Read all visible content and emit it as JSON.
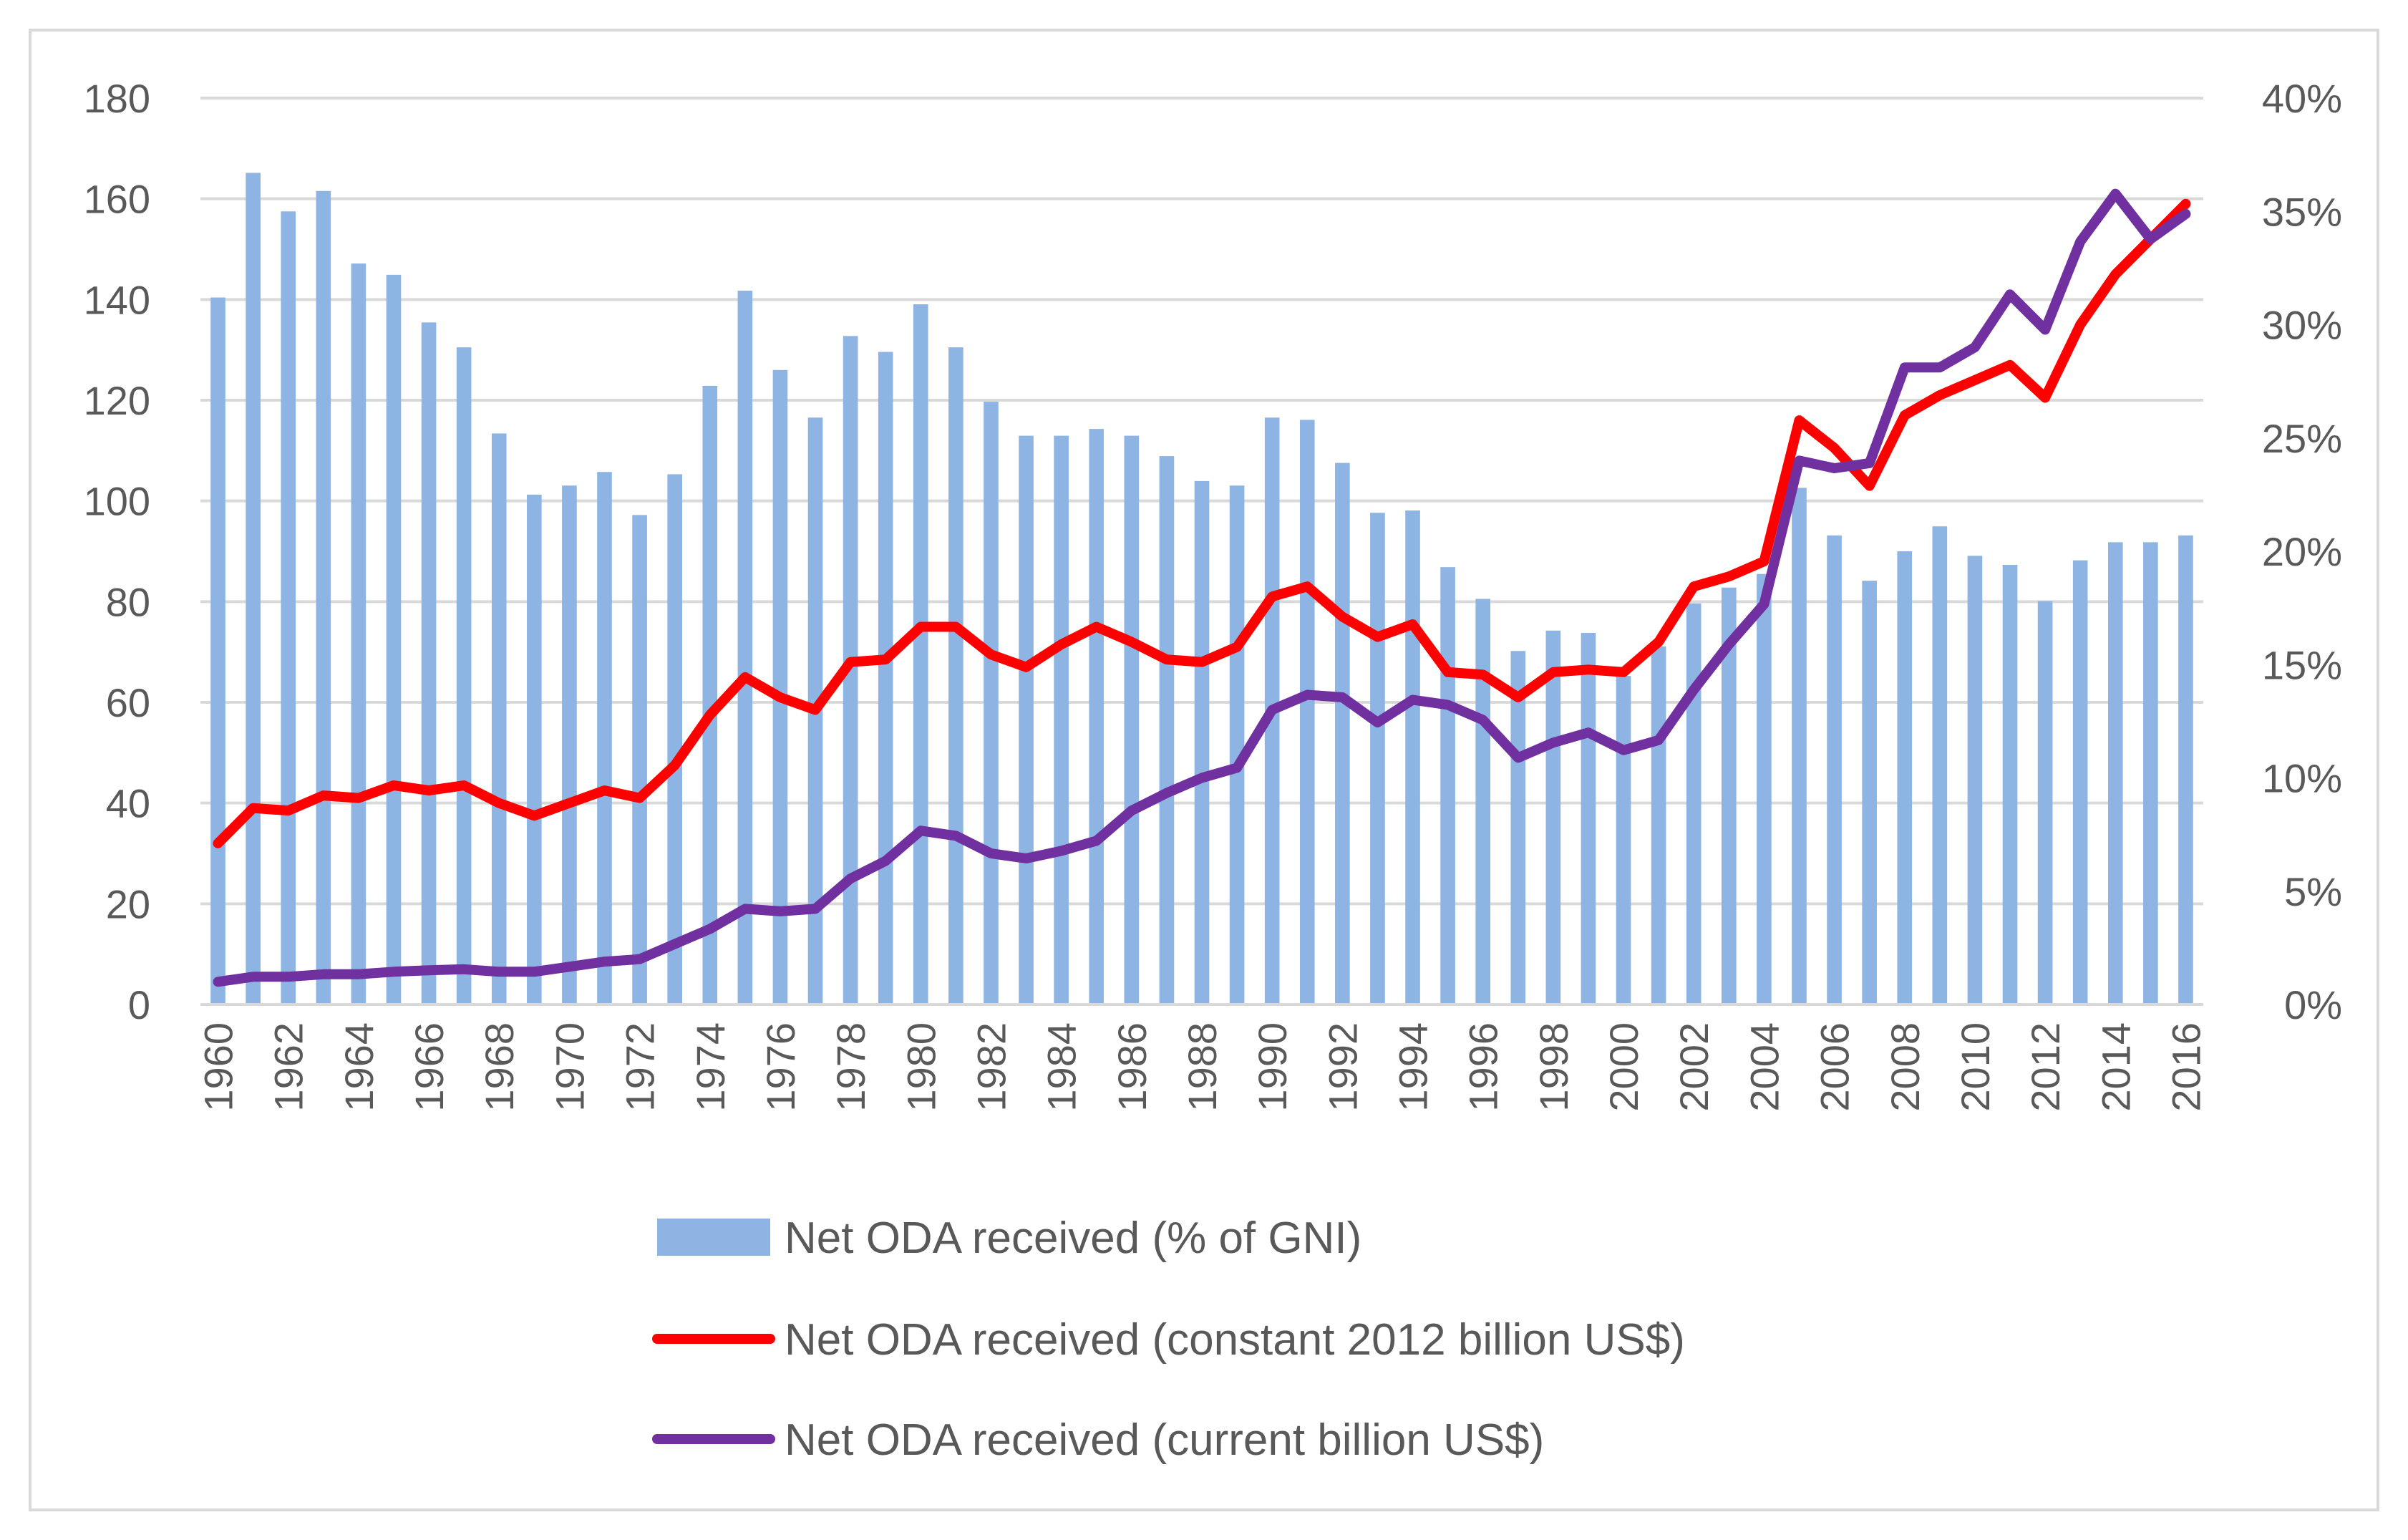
{
  "chart_data": {
    "type": "bar+line",
    "categories": [
      "1960",
      "1961",
      "1962",
      "1963",
      "1964",
      "1965",
      "1966",
      "1967",
      "1968",
      "1969",
      "1970",
      "1971",
      "1972",
      "1973",
      "1974",
      "1975",
      "1976",
      "1977",
      "1978",
      "1979",
      "1980",
      "1981",
      "1982",
      "1983",
      "1984",
      "1985",
      "1986",
      "1987",
      "1988",
      "1989",
      "1990",
      "1991",
      "1992",
      "1993",
      "1994",
      "1995",
      "1996",
      "1997",
      "1998",
      "1999",
      "2000",
      "2001",
      "2002",
      "2003",
      "2004",
      "2005",
      "2006",
      "2007",
      "2008",
      "2009",
      "2010",
      "2011",
      "2012",
      "2013",
      "2014",
      "2015",
      "2016"
    ],
    "x_tick_labels": [
      "1960",
      "1962",
      "1964",
      "1966",
      "1968",
      "1970",
      "1972",
      "1974",
      "1976",
      "1978",
      "1980",
      "1982",
      "1984",
      "1986",
      "1988",
      "1990",
      "1992",
      "1994",
      "1996",
      "1998",
      "2000",
      "2002",
      "2004",
      "2006",
      "2008",
      "2010",
      "2012",
      "2014",
      "2016"
    ],
    "y_left": {
      "min": 0,
      "max": 180,
      "step": 20,
      "ticks": [
        "0",
        "20",
        "40",
        "60",
        "80",
        "100",
        "120",
        "140",
        "160",
        "180"
      ]
    },
    "y_right": {
      "min": 0,
      "max": 40,
      "step": 5,
      "ticks": [
        "0%",
        "5%",
        "10%",
        "15%",
        "20%",
        "25%",
        "30%",
        "35%",
        "40%"
      ]
    },
    "grid": true,
    "legend_position": "bottom",
    "series": [
      {
        "name": "Net ODA received (% of GNI)",
        "kind": "bar",
        "axis": "right",
        "color": "#8eb4e3",
        "values": [
          31.2,
          36.7,
          35.0,
          35.9,
          32.7,
          32.2,
          30.1,
          29.0,
          25.2,
          22.5,
          22.9,
          23.5,
          21.6,
          23.4,
          27.3,
          31.5,
          28.0,
          25.9,
          29.5,
          28.8,
          30.9,
          29.0,
          26.6,
          25.1,
          25.1,
          25.4,
          25.1,
          24.2,
          23.1,
          22.9,
          25.9,
          25.8,
          23.9,
          21.7,
          21.8,
          19.3,
          17.9,
          15.6,
          16.5,
          16.4,
          14.5,
          15.8,
          17.7,
          18.4,
          19.0,
          22.8,
          20.7,
          18.7,
          20.0,
          21.1,
          19.8,
          19.4,
          17.8,
          19.6,
          20.4,
          20.4,
          20.7
        ]
      },
      {
        "name": "Net ODA received (constant 2012 billion US$)",
        "kind": "line",
        "axis": "left",
        "color": "#ff0000",
        "values": [
          32,
          39,
          38.5,
          41.5,
          41,
          43.5,
          42.5,
          43.5,
          40,
          37.5,
          40,
          42.5,
          41,
          47.5,
          57.5,
          65,
          61,
          58.5,
          68,
          68.5,
          75,
          75,
          69.5,
          67,
          71.5,
          75,
          72,
          68.5,
          68,
          71,
          81,
          83,
          77,
          73,
          75.5,
          66,
          65.5,
          61,
          66,
          66.5,
          66,
          72,
          83,
          85,
          88,
          116,
          110.5,
          103,
          117,
          121,
          124,
          127,
          120.5,
          135,
          145,
          152,
          159
        ]
      },
      {
        "name": "Net ODA received (current billion US$)",
        "kind": "line",
        "axis": "left",
        "color": "#7030a0",
        "values": [
          4.5,
          5.5,
          5.5,
          6,
          6,
          6.5,
          6.8,
          7,
          6.5,
          6.5,
          7.5,
          8.5,
          9,
          12,
          15,
          19,
          18.5,
          19,
          25,
          28.5,
          34.5,
          33.5,
          30,
          29,
          30.5,
          32.5,
          38.5,
          42,
          45,
          47,
          58.5,
          61.5,
          61,
          56,
          60.5,
          59.5,
          56.5,
          49,
          52,
          54,
          50.5,
          52.5,
          62.5,
          71.5,
          79.5,
          108,
          106.5,
          107.5,
          126.5,
          126.5,
          130.5,
          141,
          134,
          151.5,
          161,
          152,
          157
        ]
      }
    ]
  }
}
